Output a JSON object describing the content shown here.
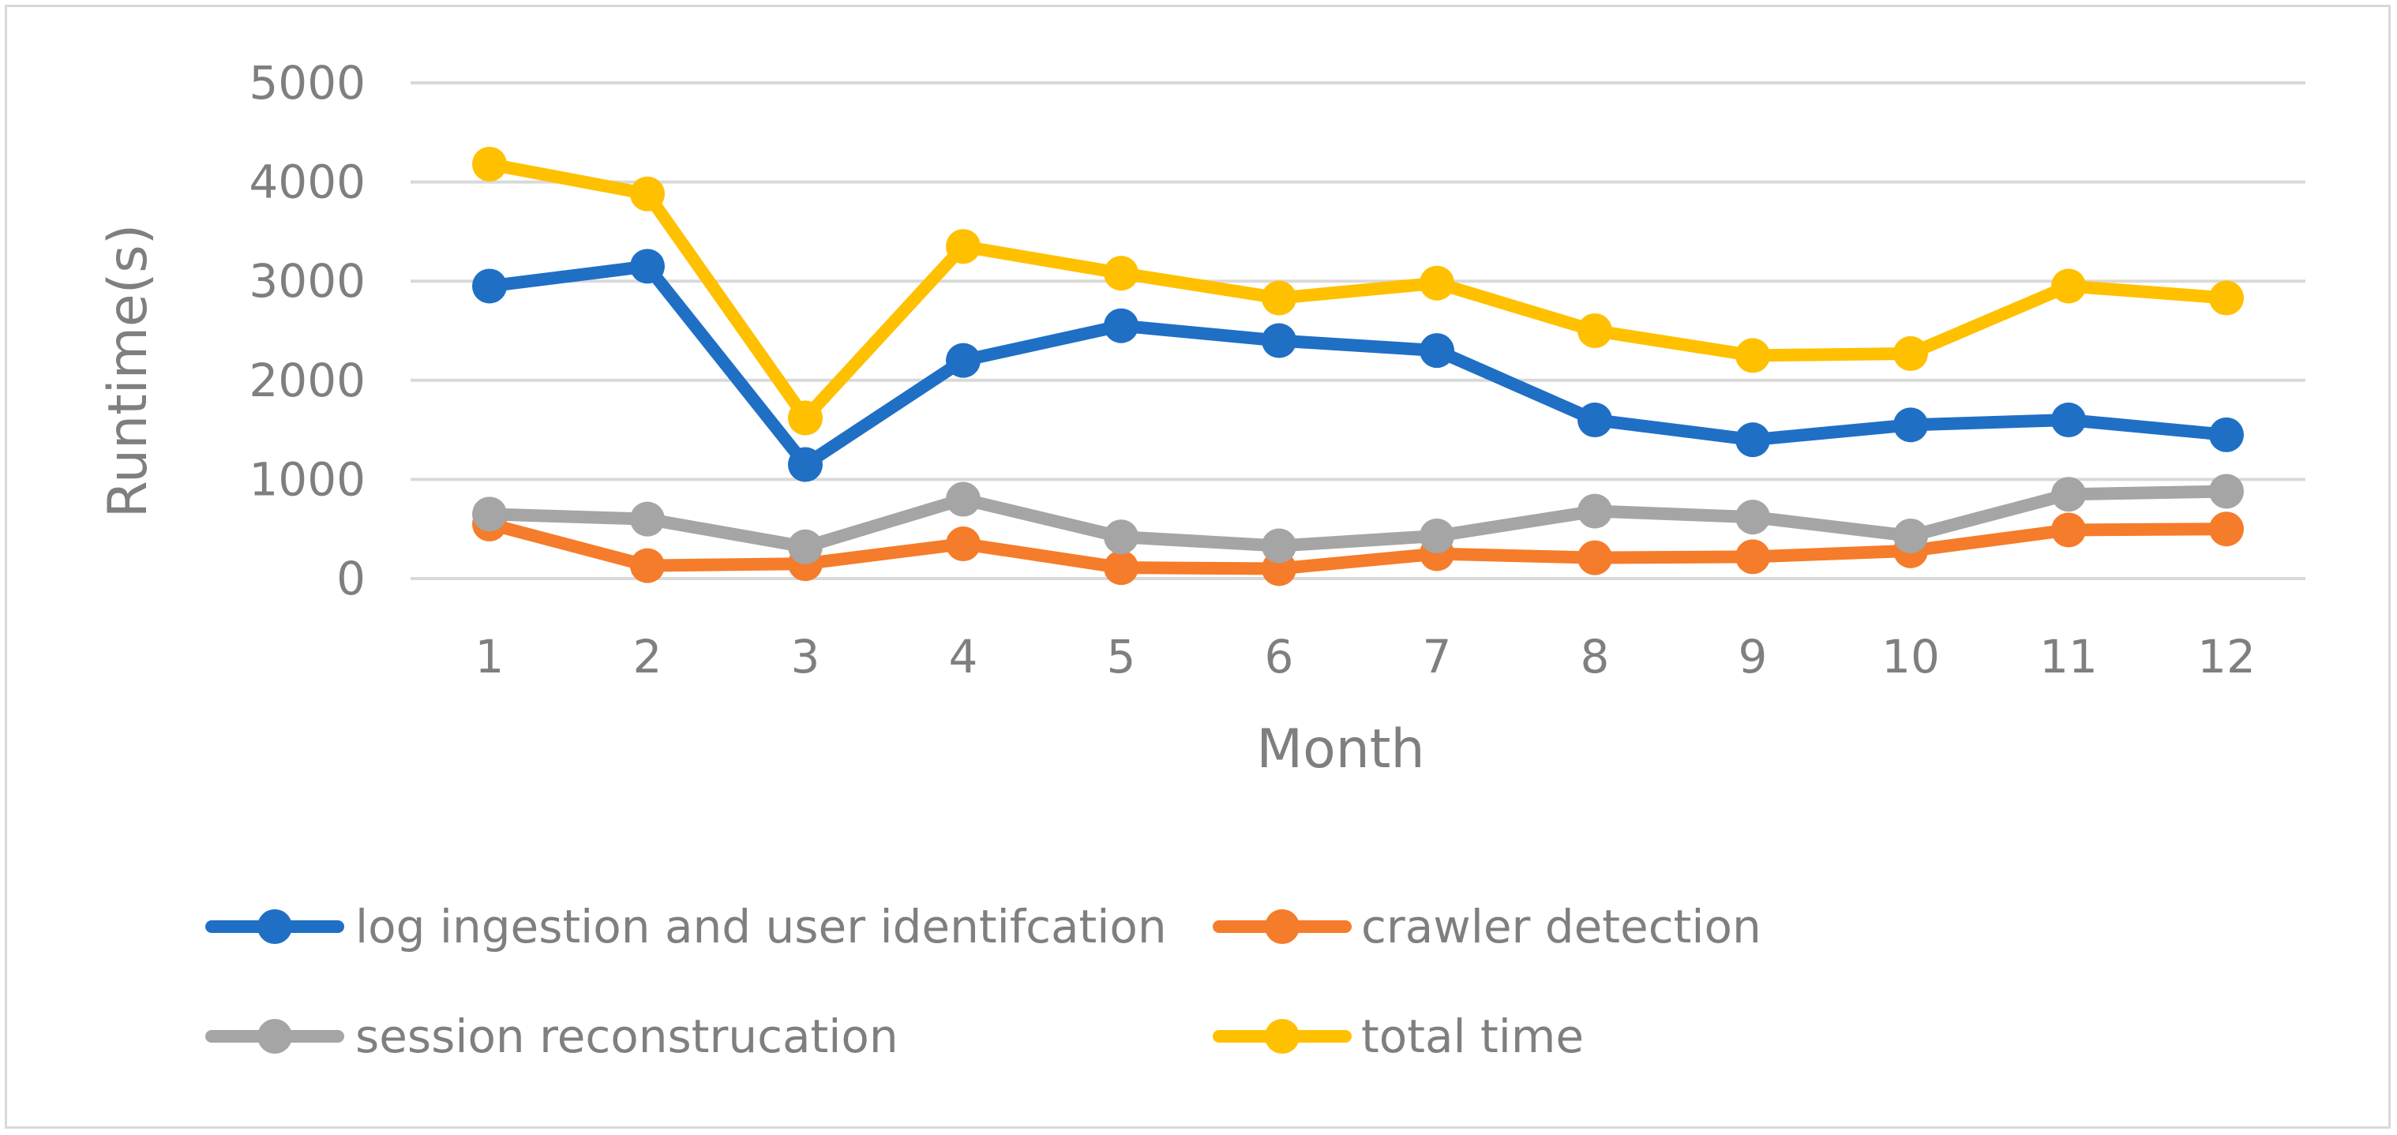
{
  "chart_data": {
    "type": "line",
    "title": "",
    "xlabel": "Month",
    "ylabel": "Runtime(s)",
    "ylim": [
      0,
      5000
    ],
    "yticks": [
      0,
      1000,
      2000,
      3000,
      4000,
      5000
    ],
    "grid": true,
    "legend_position": "bottom",
    "categories": [
      "1",
      "2",
      "3",
      "4",
      "5",
      "6",
      "7",
      "8",
      "9",
      "10",
      "11",
      "12"
    ],
    "series": [
      {
        "name": "log ingestion and user identifcation",
        "color": "#1f6fc5",
        "values": [
          2950,
          3150,
          1150,
          2200,
          2550,
          2400,
          2300,
          1600,
          1400,
          1550,
          1600,
          1450
        ]
      },
      {
        "name": "crawler detection",
        "color": "#f57c2a",
        "values": [
          550,
          130,
          150,
          350,
          110,
          100,
          250,
          210,
          220,
          280,
          490,
          500
        ]
      },
      {
        "name": "session reconstrucation",
        "color": "#a5a5a5",
        "values": [
          650,
          600,
          320,
          800,
          420,
          330,
          430,
          680,
          620,
          430,
          850,
          880
        ]
      },
      {
        "name": "total time",
        "color": "#ffc000",
        "values": [
          4180,
          3880,
          1620,
          3350,
          3080,
          2830,
          2980,
          2500,
          2250,
          2270,
          2950,
          2830
        ]
      }
    ]
  }
}
